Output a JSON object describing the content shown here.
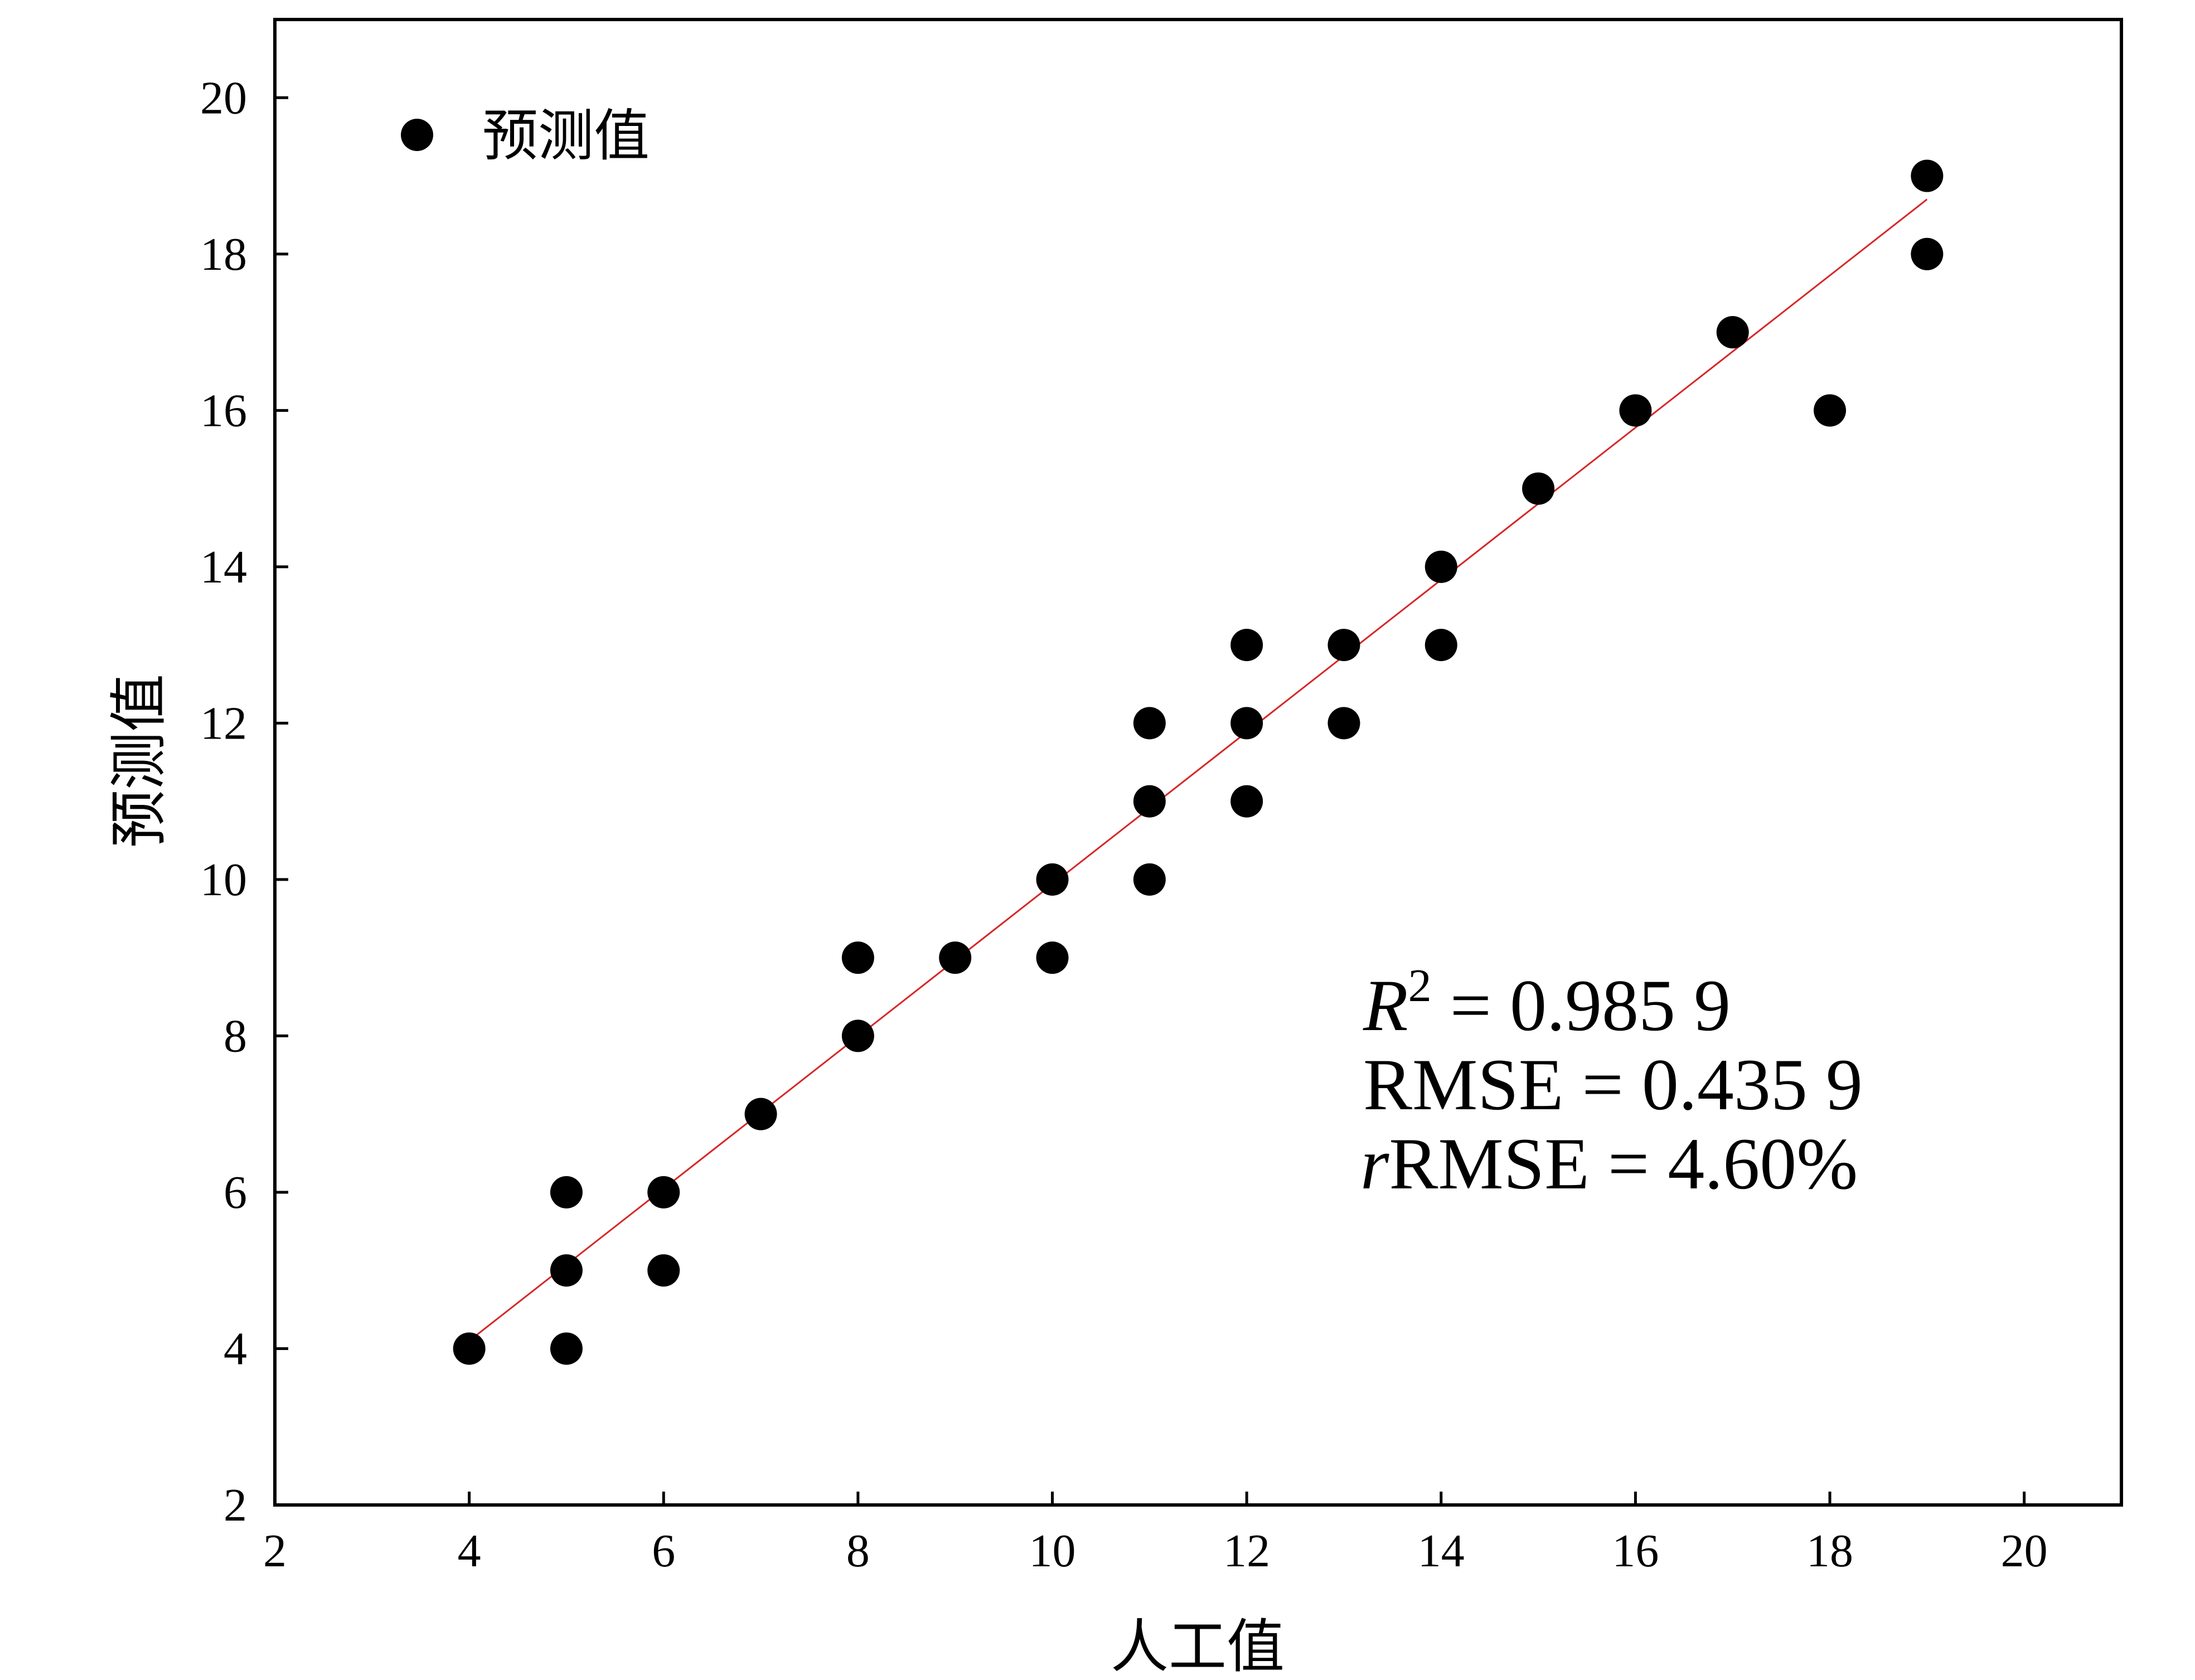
{
  "chart_data": {
    "type": "scatter",
    "xlabel": "人工值",
    "ylabel": "预测值",
    "xlim": [
      2,
      21
    ],
    "ylim": [
      2,
      21
    ],
    "xticks": [
      "2",
      "4",
      "6",
      "8",
      "10",
      "12",
      "14",
      "16",
      "18",
      "20"
    ],
    "yticks": [
      "2",
      "4",
      "6",
      "8",
      "10",
      "12",
      "14",
      "16",
      "18",
      "20"
    ],
    "legend": {
      "label": "预测值",
      "position": "top-left"
    },
    "series": [
      {
        "name": "预测值",
        "points": [
          {
            "x": 4,
            "y": 4
          },
          {
            "x": 5,
            "y": 4
          },
          {
            "x": 5,
            "y": 5
          },
          {
            "x": 5,
            "y": 6
          },
          {
            "x": 6,
            "y": 5
          },
          {
            "x": 6,
            "y": 6
          },
          {
            "x": 7,
            "y": 7
          },
          {
            "x": 8,
            "y": 8
          },
          {
            "x": 8,
            "y": 9
          },
          {
            "x": 9,
            "y": 9
          },
          {
            "x": 10,
            "y": 9
          },
          {
            "x": 10,
            "y": 10
          },
          {
            "x": 11,
            "y": 10
          },
          {
            "x": 11,
            "y": 11
          },
          {
            "x": 11,
            "y": 12
          },
          {
            "x": 12,
            "y": 11
          },
          {
            "x": 12,
            "y": 12
          },
          {
            "x": 12,
            "y": 13
          },
          {
            "x": 13,
            "y": 12
          },
          {
            "x": 13,
            "y": 13
          },
          {
            "x": 14,
            "y": 13
          },
          {
            "x": 14,
            "y": 14
          },
          {
            "x": 15,
            "y": 15
          },
          {
            "x": 16,
            "y": 16
          },
          {
            "x": 17,
            "y": 17
          },
          {
            "x": 18,
            "y": 16
          },
          {
            "x": 19,
            "y": 18
          },
          {
            "x": 19,
            "y": 19
          }
        ]
      }
    ],
    "fit_line": {
      "from": {
        "x": 4,
        "y": 4.1
      },
      "to": {
        "x": 19,
        "y": 18.7
      },
      "color": "#d62728"
    },
    "marker_color": "#000000",
    "grid": false,
    "annotations": {
      "r2_symbol": "R",
      "r2_sup": "2",
      "r2_value": " = 0.985 9",
      "rmse": "RMSE = 0.435 9",
      "rrmse_prefix": "r",
      "rrmse_rest": "RMSE = 4.60%"
    }
  }
}
